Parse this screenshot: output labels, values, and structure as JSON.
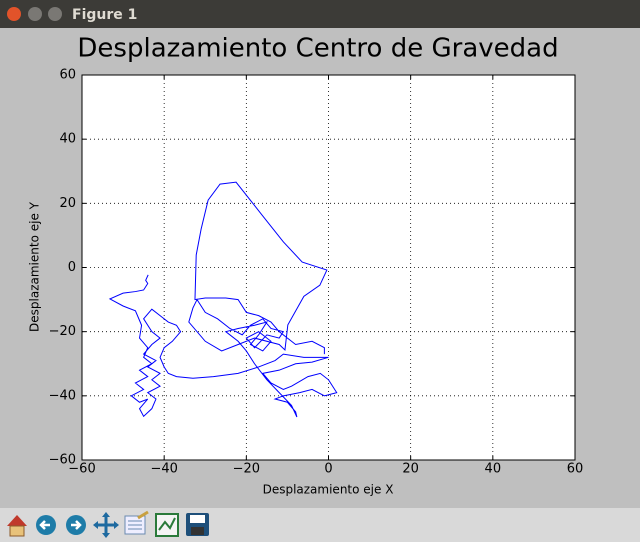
{
  "window_title": "Figure 1",
  "chart_data": {
    "type": "line",
    "title": "Desplazamiento Centro de Gravedad",
    "x_label": "Desplazamiento eje X",
    "y_label": "Desplazamiento eje Y",
    "xlim": [
      -60,
      60
    ],
    "ylim": [
      -60,
      60
    ],
    "xticks": [
      {
        "value": -60,
        "label": "−60"
      },
      {
        "value": -40,
        "label": "−40"
      },
      {
        "value": -20,
        "label": "−20"
      },
      0,
      20,
      40,
      60
    ],
    "yticks": [
      {
        "value": -60,
        "label": "−60"
      },
      {
        "value": -40,
        "label": "−40"
      },
      {
        "value": -20,
        "label": "−20"
      },
      0,
      20,
      40,
      60
    ],
    "grid": true,
    "series": [
      {
        "color": "#0000ff",
        "x": [
          -43.9,
          -44.5,
          -44,
          -45,
          -47,
          -50,
          -53.2,
          -50,
          -47,
          -45.5,
          -46,
          -44,
          -45,
          -43,
          -46,
          -44,
          -47,
          -45,
          -48,
          -46,
          -44,
          -46,
          -45,
          -43,
          -42,
          -44,
          -41,
          -43,
          -41,
          -44,
          -42,
          -45,
          -43,
          -41,
          -43,
          -45,
          -43,
          -41,
          -39,
          -37,
          -36,
          -38,
          -40,
          -41,
          -40,
          -39,
          -37,
          -33,
          -28,
          -22,
          -17,
          -13,
          -11,
          -6,
          0,
          -4,
          -8,
          -12,
          -16,
          -14,
          -11,
          -9,
          -5,
          -2,
          0,
          2,
          -1,
          -4,
          -7,
          -11,
          -13,
          -10,
          -8,
          -7.7,
          -9,
          -12,
          -15,
          -18,
          -20,
          -22,
          -25,
          -22,
          -18,
          -15,
          -17,
          -19,
          -16,
          -14,
          -17,
          -20,
          -18,
          -15,
          -12,
          -11,
          -14,
          -16,
          -19,
          -21,
          -24,
          -27,
          -30,
          -32,
          -33,
          -34,
          -30,
          -26,
          -22,
          -18,
          -12,
          -10.6,
          -9.9,
          -6,
          -2.1,
          -0.4,
          -6.4,
          -11,
          -16.2,
          -22.5,
          -26.4,
          -29.3,
          -31,
          -32.2,
          -32.5,
          -30,
          -25,
          -22,
          -20,
          -17,
          -14,
          -12,
          -8,
          -4,
          -1,
          -1
        ],
        "y": [
          -2.3,
          -4,
          -5,
          -7,
          -7.5,
          -8,
          -9.8,
          -12,
          -13.5,
          -18,
          -22,
          -25,
          -28,
          -30,
          -32,
          -34,
          -36,
          -38,
          -40,
          -42,
          -41,
          -44,
          -46.4,
          -44,
          -41,
          -39,
          -37,
          -35,
          -33,
          -31,
          -29,
          -27,
          -24,
          -22,
          -20,
          -16,
          -13,
          -15,
          -17,
          -18,
          -20,
          -23,
          -25,
          -28,
          -31,
          -33,
          -34,
          -34.5,
          -34,
          -33,
          -31,
          -29,
          -27,
          -28,
          -28,
          -29.5,
          -30,
          -32,
          -33,
          -36,
          -38,
          -37,
          -34,
          -33,
          -35,
          -39,
          -40,
          -38,
          -39,
          -40,
          -41,
          -42,
          -45,
          -46.6,
          -43,
          -39,
          -35,
          -30,
          -26,
          -23,
          -20,
          -19,
          -18,
          -17,
          -21,
          -24,
          -26,
          -23,
          -20,
          -22,
          -25,
          -21,
          -22,
          -20,
          -19,
          -16,
          -18,
          -21,
          -19,
          -16,
          -14,
          -10,
          -12.6,
          -17,
          -23,
          -26,
          -24,
          -22,
          -24,
          -25.7,
          -17.9,
          -9,
          -5.5,
          -0.8,
          1.7,
          8,
          16.4,
          26.6,
          26,
          21,
          12,
          3.9,
          -10,
          -9.5,
          -9.5,
          -10,
          -14,
          -15,
          -17,
          -20,
          -24,
          -23,
          -25,
          -27
        ]
      }
    ]
  }
}
